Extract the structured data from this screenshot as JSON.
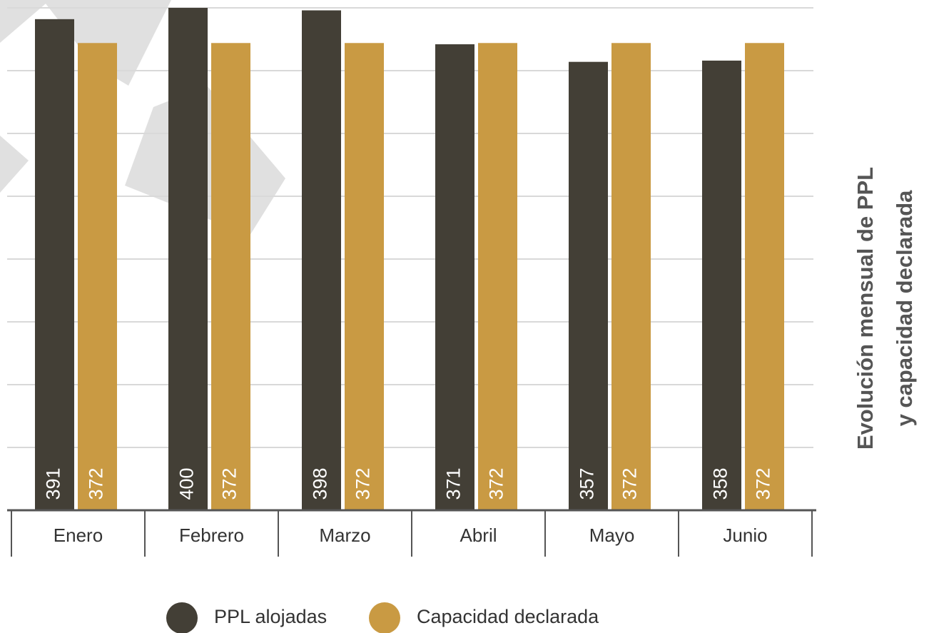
{
  "chart_data": {
    "type": "bar",
    "title": [
      "Evolución mensual de PPL",
      "y capacidad declarada"
    ],
    "categories": [
      "Enero",
      "Febrero",
      "Marzo",
      "Abril",
      "Mayo",
      "Junio"
    ],
    "series": [
      {
        "name": "PPL alojadas",
        "color": "#433f36",
        "values": [
          391,
          400,
          398,
          371,
          357,
          358
        ]
      },
      {
        "name": "Capacidad declarada",
        "color": "#c99a43",
        "values": [
          372,
          372,
          372,
          372,
          372,
          372
        ]
      }
    ],
    "ylim": [
      0,
      400
    ],
    "yticks": [
      0,
      50,
      100,
      150,
      200,
      250,
      300,
      350,
      400
    ],
    "grid": true
  }
}
